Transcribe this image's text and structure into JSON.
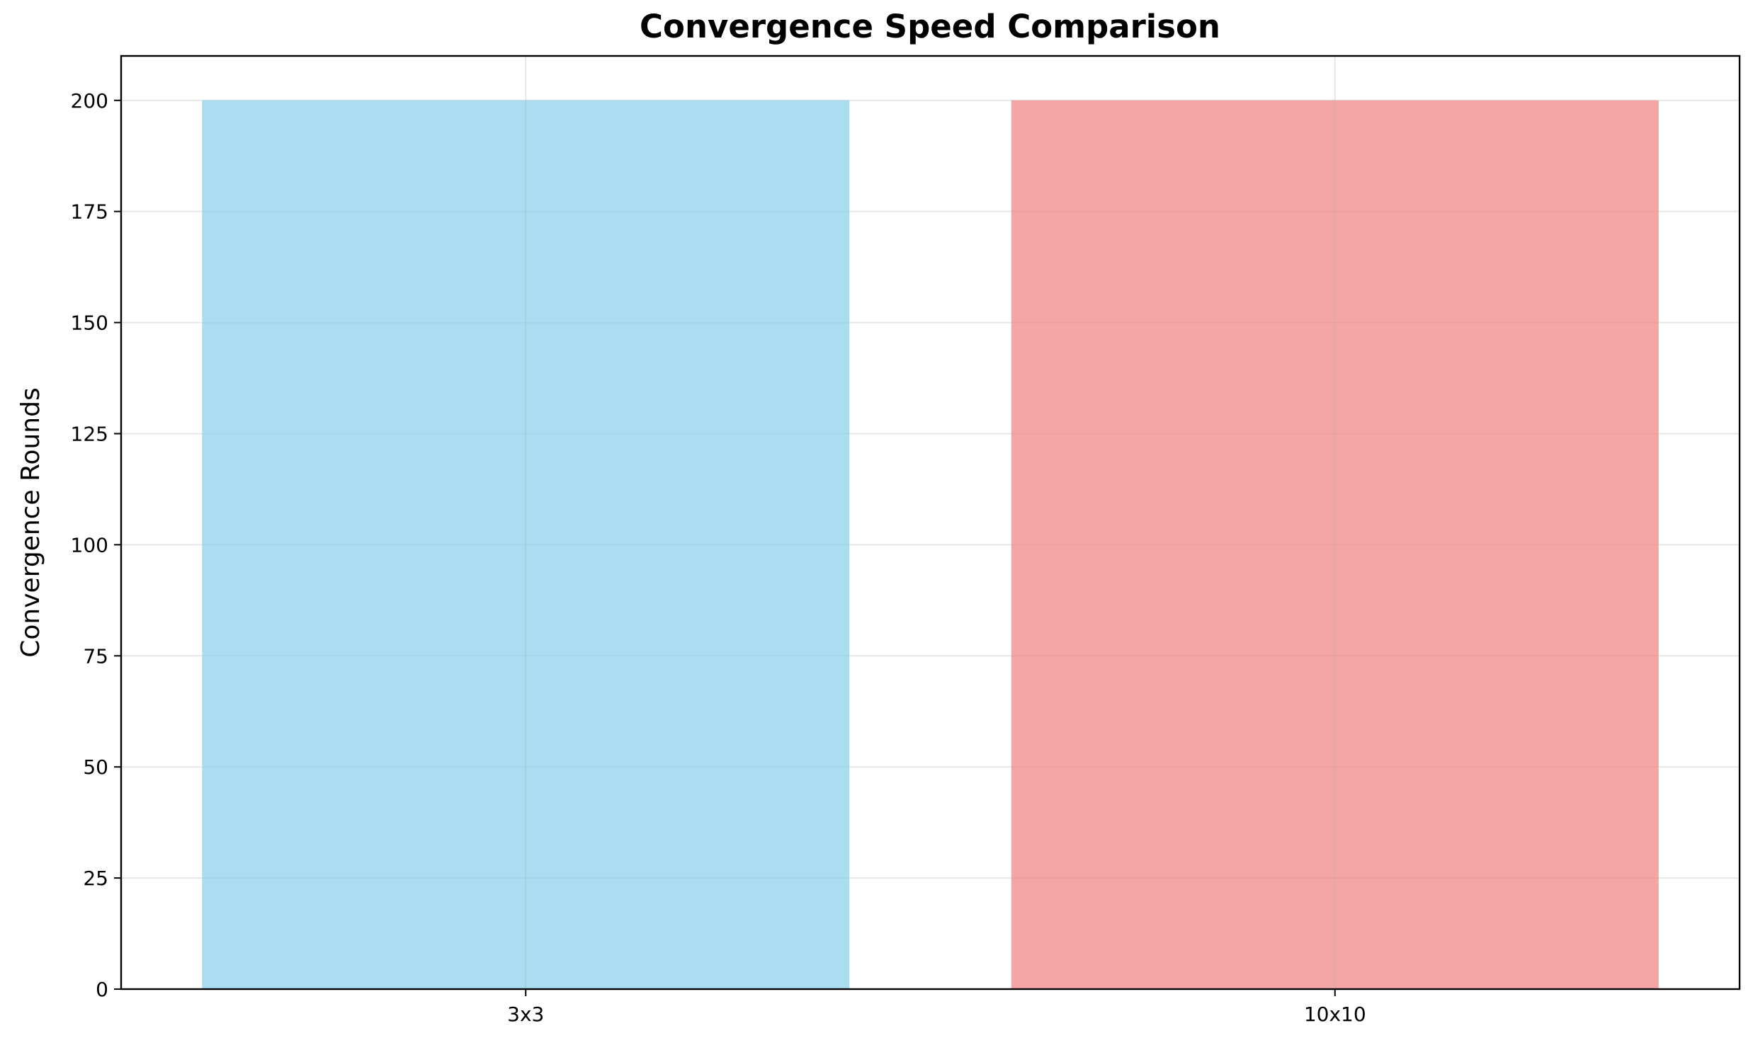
{
  "chart_data": {
    "type": "bar",
    "title": "Convergence Speed Comparison",
    "xlabel": "",
    "ylabel": "Convergence Rounds",
    "categories": [
      "3x3",
      "10x10"
    ],
    "values": [
      200,
      200
    ],
    "bar_colors": [
      "#87ceeb",
      "#f08080"
    ],
    "bar_opacity": 0.7,
    "ylim": [
      0,
      210
    ],
    "yticks": [
      0,
      25,
      50,
      75,
      100,
      125,
      150,
      175,
      200
    ],
    "grid": true,
    "legend": "none"
  }
}
